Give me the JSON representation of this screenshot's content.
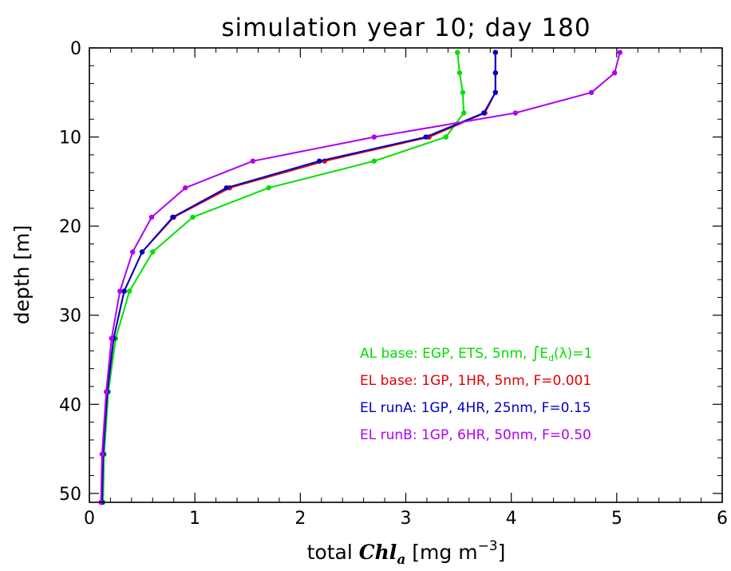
{
  "chart_data": {
    "type": "line",
    "title": "simulation year 10; day 180",
    "xlabel": {
      "prefix": "total ",
      "chl": "Chl",
      "chl_sub": "a",
      "units": " [mg m",
      "units_sup": "−3",
      "units_close": "]"
    },
    "ylabel": "depth [m]",
    "xlim": [
      0,
      6
    ],
    "ylim": [
      51,
      0
    ],
    "y_inverted": true,
    "xticks": [
      0,
      1,
      2,
      3,
      4,
      5,
      6
    ],
    "xtick_labels": [
      "0",
      "1",
      "2",
      "3",
      "4",
      "5",
      "6"
    ],
    "yticks": [
      0,
      10,
      20,
      30,
      40,
      50
    ],
    "ytick_labels": [
      "0",
      "10",
      "20",
      "30",
      "40",
      "50"
    ],
    "x_minor_step": 0.2,
    "y_minor_step": 2,
    "grid": false,
    "legend_position": "lower-right",
    "series": [
      {
        "name": "AL base: EGP, ETS, 5nm, ∫E_d(λ)=1",
        "legend_parts": {
          "before": "AL base: EGP, ETS, 5nm, ",
          "integral": "∫",
          "E": "E",
          "sub": "d",
          "after": "(λ)=1"
        },
        "color": "#00e000",
        "x": [
          3.49,
          3.51,
          3.54,
          3.55,
          3.38,
          2.7,
          1.7,
          0.98,
          0.6,
          0.38,
          0.25,
          0.18,
          0.14,
          0.13
        ],
        "y": [
          0.5,
          2.8,
          5.0,
          7.3,
          10.0,
          12.7,
          15.7,
          19.0,
          22.9,
          27.3,
          32.6,
          38.6,
          45.6,
          51.0
        ]
      },
      {
        "name": "EL base: 1GP, 1HR, 5nm, F=0.001",
        "color": "#e00000",
        "x": [
          3.85,
          3.85,
          3.85,
          3.75,
          3.22,
          2.23,
          1.33,
          0.8,
          0.5,
          0.33,
          0.23,
          0.17,
          0.13,
          0.12
        ],
        "y": [
          0.5,
          2.8,
          5.0,
          7.3,
          10.0,
          12.7,
          15.7,
          19.0,
          22.9,
          27.3,
          32.6,
          38.6,
          45.6,
          51.0
        ]
      },
      {
        "name": "EL runA: 1GP, 4HR, 25nm, F=0.15",
        "color": "#0000c8",
        "x": [
          3.85,
          3.85,
          3.85,
          3.74,
          3.19,
          2.18,
          1.3,
          0.79,
          0.5,
          0.33,
          0.23,
          0.17,
          0.13,
          0.12
        ],
        "y": [
          0.5,
          2.8,
          5.0,
          7.3,
          10.0,
          12.7,
          15.7,
          19.0,
          22.9,
          27.3,
          32.6,
          38.6,
          45.6,
          51.0
        ]
      },
      {
        "name": "EL runB: 1GP, 6HR, 50nm, F=0.50",
        "color": "#b000f0",
        "x": [
          5.03,
          4.98,
          4.76,
          4.04,
          2.7,
          1.55,
          0.91,
          0.59,
          0.41,
          0.29,
          0.21,
          0.16,
          0.12,
          0.11
        ],
        "y": [
          0.5,
          2.8,
          5.0,
          7.3,
          10.0,
          12.7,
          15.7,
          19.0,
          22.9,
          27.3,
          32.6,
          38.6,
          45.6,
          51.0
        ]
      }
    ]
  }
}
